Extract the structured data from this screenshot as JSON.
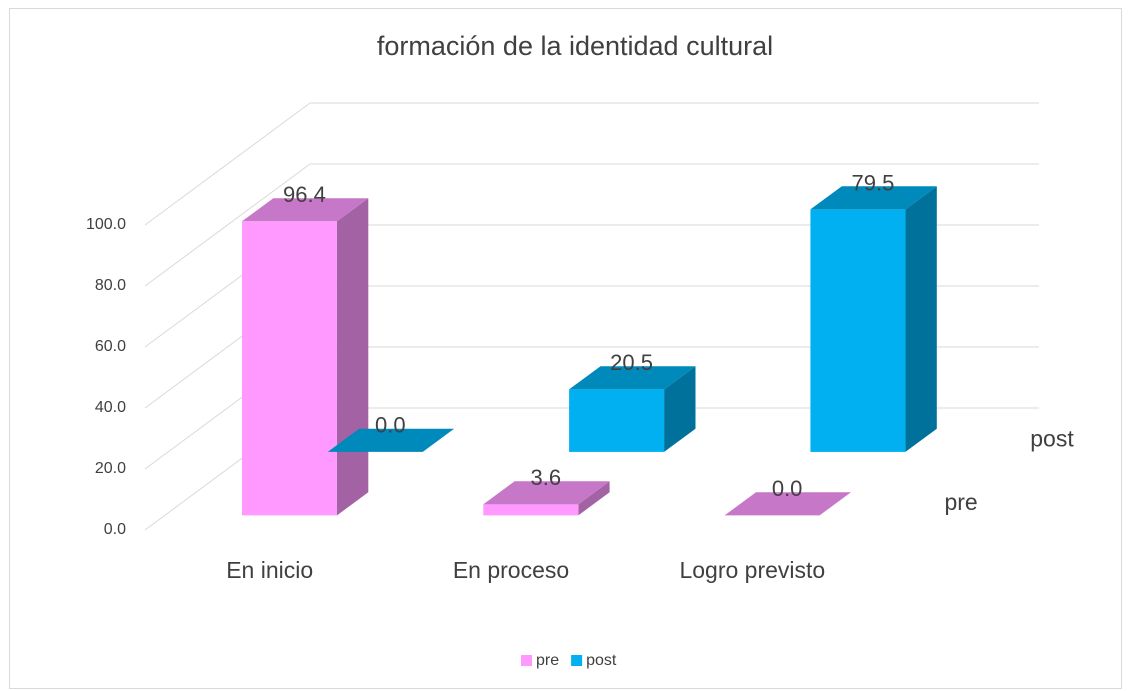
{
  "chart_data": {
    "type": "bar3d",
    "title": "formación de la identidad cultural",
    "categories": [
      "En inicio",
      "En proceso",
      "Logro previsto"
    ],
    "series": [
      {
        "name": "pre",
        "color": "#ff99ff",
        "values": [
          96.4,
          3.6,
          0.0
        ],
        "value_labels": [
          "96.4",
          "3.6",
          "0.0"
        ]
      },
      {
        "name": "post",
        "color": "#00b0f0",
        "values": [
          0.0,
          20.5,
          79.5
        ],
        "value_labels": [
          "0.0",
          "20.5",
          "79.5"
        ]
      }
    ],
    "ylim": [
      0,
      100
    ],
    "yticks": [
      {
        "value": 0,
        "label": "0.0"
      },
      {
        "value": 20,
        "label": "20.0"
      },
      {
        "value": 40,
        "label": "40.0"
      },
      {
        "value": 60,
        "label": "60.0"
      },
      {
        "value": 80,
        "label": "80.0"
      },
      {
        "value": 100,
        "label": "100.0"
      }
    ],
    "grid": true,
    "legend": "bottom"
  }
}
